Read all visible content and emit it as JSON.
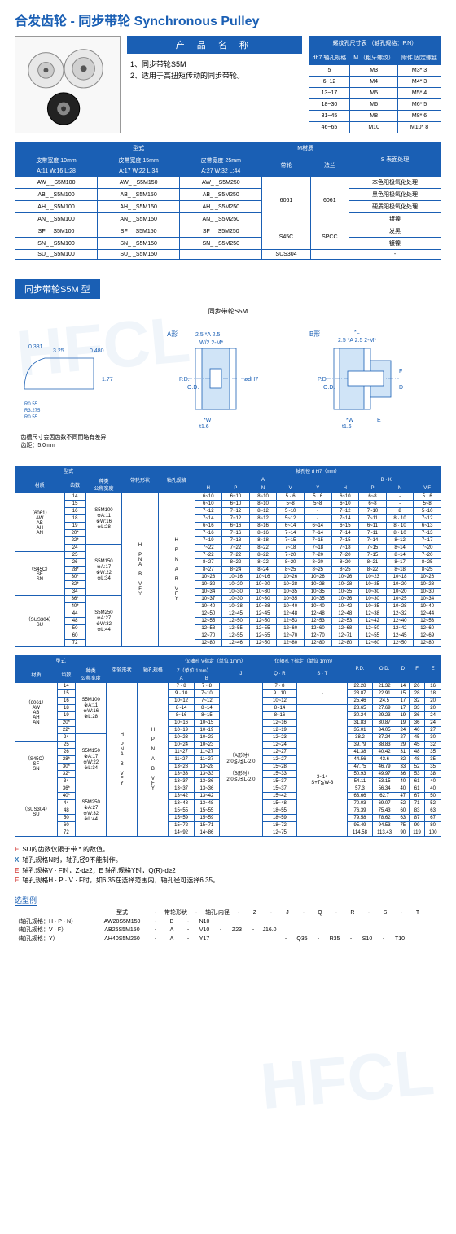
{
  "title": "合发齿轮 - 同步带轮 Synchronous Pulley",
  "product_name_header": "产 品 名 称",
  "description_lines": [
    "1、同步带轮S5M",
    "2、适用于高扭矩传动的同步带轮。"
  ],
  "screw_table": {
    "title": "螺纹孔尺寸表 （轴孔规格：P.N）",
    "headers": [
      "dh7\n轴孔规格",
      "M\n（粗牙螺纹）",
      "附件\n固定螺丝"
    ],
    "rows": [
      [
        "5",
        "M3",
        "M3* 3"
      ],
      [
        "6~12",
        "M4",
        "M4* 3"
      ],
      [
        "13~17",
        "M5",
        "M5* 4"
      ],
      [
        "18~30",
        "M6",
        "M6* 5"
      ],
      [
        "31~45",
        "M8",
        "M8* 6"
      ],
      [
        "46~65",
        "M10",
        "M10* 8"
      ]
    ]
  },
  "type_table": {
    "group_headers": [
      "型式",
      "M材质",
      "S 表面处理"
    ],
    "belt_w": [
      "皮带宽度 10mm",
      "皮带宽度 15mm",
      "皮带宽度 25mm"
    ],
    "awl": [
      "A:11  W:16  L:28",
      "A:17  W:22  L:34",
      "A:27  W:32  L:44"
    ],
    "mat_hdr": [
      "带轮",
      "法兰"
    ],
    "rows": [
      {
        "cells": [
          "AW_ _S5M100",
          "AW_ _S5M150",
          "AW_ _S5M250"
        ],
        "mat": [
          "6061",
          "6061"
        ],
        "surf": "本色阳极氧化处理",
        "rs": 4
      },
      {
        "cells": [
          "AB_ _S5M100",
          "AB_ _S5M150",
          "AB_ _S5M250"
        ],
        "surf": "黑色阳极氧化处理"
      },
      {
        "cells": [
          "AH_ _S5M100",
          "AH_ _S5M150",
          "AH_ _S5M250"
        ],
        "surf": "硬质阳极氧化处理"
      },
      {
        "cells": [
          "AN_ _S5M100",
          "AN_ _S5M150",
          "AN_ _S5M250"
        ],
        "surf": "镀镍"
      },
      {
        "cells": [
          "SF_ _S5M100",
          "SF_ _S5M150",
          "SF_ _S5M250"
        ],
        "mat": [
          "S45C",
          "SPCC"
        ],
        "surf": "发黑",
        "rs": 2
      },
      {
        "cells": [
          "SN_ _S5M100",
          "SN_ _S5M150",
          "SN_ _S5M250"
        ],
        "surf": "镀镍"
      },
      {
        "cells": [
          "SU_ _S5M100",
          "SU_ _S5M150",
          ""
        ],
        "mat": [
          "SUS304",
          ""
        ],
        "surf": "-",
        "rs": 1
      }
    ]
  },
  "section_header": "同步带轮S5M 型",
  "diagram_title": "同步带轮S5M",
  "diagram_labels": {
    "a": "A形",
    "b": "B形",
    "note": "齿槽尺寸会因齿数不同而略有差异\n齿距：5.0mm"
  },
  "bore_table": {
    "title": "型式",
    "hdr1": [
      "材质",
      "齿数",
      "种类\n公称宽度",
      "带轮形状",
      "轴孔规格",
      "轴孔径 d H7（mm）"
    ],
    "hdr2_a": "A",
    "hdr2_bk": "B · K",
    "hdr3": [
      "H",
      "P",
      "N",
      "V",
      "Y",
      "H",
      "P",
      "N",
      "V.F"
    ],
    "materials": [
      {
        "mat": "（6061）\nAW\nAB\nAH\nAN",
        "rs": 8
      },
      {
        "mat": "（S45C）\nSF\nSN",
        "rs": 5
      },
      {
        "mat": "（SUS304）\nSU",
        "rs": 6
      }
    ],
    "type_col": [
      {
        "t": "S5M100\n※A:11\n※W:16\n※L:28",
        "rs": 7
      },
      {
        "t": "S5M150\n※A:17\n※W:22\n※L:34",
        "rs": 6
      },
      {
        "t": "S5M250\n※A:27\n※W:32\n※L:44",
        "rs": 6
      }
    ],
    "shape_col": [
      {
        "t": "H",
        "rs": 6
      },
      {
        "t": "P\nN\nA",
        "rs": 3
      },
      {
        "t": "B",
        "rs": 6
      },
      {
        "t": "V\nF\nY",
        "rs": 4
      }
    ],
    "bore_col": [
      {
        "t": "H",
        "rs": 6
      },
      {
        "t": "P",
        "rs": 3
      },
      {
        "t": "N",
        "rs": 3
      },
      {
        "t": "A",
        "rs": 3
      },
      {
        "t": "B",
        "rs": 2
      },
      {
        "t": "V\nF\nY",
        "rs": 2
      }
    ],
    "rows": [
      [
        "14",
        "6~10",
        "6~10",
        "8~10",
        "5 · 6",
        "5 · 6",
        "6~10",
        "6~8",
        "-",
        "5 · 6"
      ],
      [
        "15",
        "6~10",
        "6~10",
        "8~10",
        "5~8",
        "5~8",
        "6~10",
        "6~8",
        "-",
        "5~8"
      ],
      [
        "16",
        "7~12",
        "7~12",
        "8~12",
        "5~10",
        "-",
        "7~12",
        "7~10",
        "8",
        "5~10"
      ],
      [
        "18",
        "7~14",
        "7~12",
        "8~12",
        "5~12",
        "-",
        "7~14",
        "7~11",
        "8 · 10",
        "7~12"
      ],
      [
        "19",
        "6~16",
        "6~16",
        "8~16",
        "6~14",
        "6~14",
        "6~15",
        "6~11",
        "8 · 10",
        "6~13"
      ],
      [
        "20*",
        "7~16",
        "7~16",
        "8~16",
        "7~14",
        "7~14",
        "7~14",
        "7~11",
        "8 · 10",
        "7~13"
      ],
      [
        "22*",
        "7~19",
        "7~18",
        "8~18",
        "7~15",
        "7~15",
        "7~15",
        "7~14",
        "8~12",
        "7~17"
      ],
      [
        "24",
        "7~22",
        "7~22",
        "8~22",
        "7~18",
        "7~18",
        "7~18",
        "7~15",
        "8~14",
        "7~20"
      ],
      [
        "25",
        "7~22",
        "7~22",
        "8~22",
        "7~20",
        "7~20",
        "7~20",
        "7~15",
        "8~14",
        "7~20"
      ],
      [
        "26",
        "8~27",
        "8~22",
        "8~22",
        "8~20",
        "8~20",
        "8~20",
        "8~21",
        "8~17",
        "8~25"
      ],
      [
        "28*",
        "8~27",
        "8~24",
        "8~24",
        "8~25",
        "8~25",
        "8~25",
        "8~22",
        "8~18",
        "8~25"
      ],
      [
        "30*",
        "10~28",
        "10~16",
        "10~16",
        "10~26",
        "10~26",
        "10~26",
        "10~23",
        "10~18",
        "10~26"
      ],
      [
        "32*",
        "10~32",
        "10~20",
        "10~20",
        "10~28",
        "10~28",
        "10~28",
        "10~25",
        "10~20",
        "10~28"
      ],
      [
        "34",
        "10~34",
        "10~30",
        "10~30",
        "10~35",
        "10~35",
        "10~35",
        "10~30",
        "10~20",
        "10~30"
      ],
      [
        "36*",
        "10~37",
        "10~30",
        "10~30",
        "10~35",
        "10~35",
        "10~36",
        "10~30",
        "10~25",
        "10~34"
      ],
      [
        "40*",
        "10~40",
        "10~38",
        "10~38",
        "10~40",
        "10~40",
        "10~42",
        "10~35",
        "10~28",
        "10~40"
      ],
      [
        "44",
        "12~50",
        "12~45",
        "12~45",
        "12~48",
        "12~48",
        "12~48",
        "12~38",
        "12~32",
        "12~44"
      ],
      [
        "48",
        "12~55",
        "12~50",
        "12~50",
        "12~53",
        "12~53",
        "12~53",
        "12~42",
        "12~40",
        "12~53"
      ],
      [
        "50",
        "12~58",
        "12~55",
        "12~55",
        "12~60",
        "12~60",
        "12~68",
        "12~50",
        "12~42",
        "12~60"
      ],
      [
        "60",
        "12~70",
        "12~55",
        "12~55",
        "12~70",
        "12~70",
        "12~71",
        "12~55",
        "12~45",
        "12~69"
      ],
      [
        "72",
        "12~80",
        "12~46",
        "12~50",
        "12~80",
        "12~80",
        "12~80",
        "12~60",
        "12~50",
        "12~80"
      ]
    ]
  },
  "dim_table": {
    "hdr1": [
      "材质",
      "齿数",
      "种类\n公称宽度",
      "带轮形状",
      "轴孔规格",
      "仅轴孔 V指定（单位 1mm）",
      "仅轴孔 Y指定（单位 1mm）",
      "P.D.",
      "O.D.",
      "D",
      "F",
      "E"
    ],
    "hdr2": [
      "Z（单位 1mm）",
      "J",
      "Q · R",
      "S · T"
    ],
    "hdr3": [
      "A",
      "B",
      "（单位 0.1mm）"
    ],
    "rows": [
      [
        "14",
        "7 · 8",
        "7 · 8",
        "",
        "7 · 8",
        "",
        "22.28",
        "21.32",
        "14",
        "26",
        "16"
      ],
      [
        "15",
        "9 · 10",
        "7~10",
        "",
        "9 · 10",
        "-",
        "23.87",
        "22.91",
        "15",
        "28",
        "18"
      ],
      [
        "16",
        "10~12",
        "7~12",
        "",
        "10~12",
        "",
        "25.46",
        "24.5",
        "17",
        "32",
        "20"
      ],
      [
        "18",
        "8~14",
        "8~14",
        "",
        "8~14",
        "",
        "28.65",
        "27.69",
        "17",
        "33",
        "20"
      ],
      [
        "19",
        "8~16",
        "8~15",
        "",
        "8~16",
        "",
        "30.24",
        "29.23",
        "19",
        "36",
        "24"
      ],
      [
        "20*",
        "10~16",
        "10~15",
        "",
        "12~16",
        "",
        "31.83",
        "30.87",
        "19",
        "36",
        "24"
      ],
      [
        "22*",
        "10~19",
        "10~19",
        "",
        "12~19",
        "",
        "35.01",
        "34.05",
        "24",
        "40",
        "27"
      ],
      [
        "24",
        "10~23",
        "10~23",
        "（A形时）",
        "12~23",
        "",
        "38.2",
        "37.24",
        "27",
        "45",
        "30"
      ],
      [
        "25",
        "10~24",
        "10~23",
        "2.0≦J≦L-2.0",
        "12~24",
        "",
        "39.79",
        "38.83",
        "29",
        "45",
        "32"
      ],
      [
        "26",
        "11~27",
        "11~27",
        "",
        "12~27",
        "3~14",
        "41.38",
        "40.42",
        "31",
        "48",
        "35"
      ],
      [
        "28*",
        "11~27",
        "11~27",
        "（B形时）",
        "12~27",
        "S+T≦W-3",
        "44.56",
        "43.6",
        "32",
        "48",
        "35"
      ],
      [
        "30*",
        "13~28",
        "13~28",
        "2.0≦J≦L-2.0",
        "15~28",
        "",
        "47.75",
        "46.79",
        "33",
        "52",
        "35"
      ],
      [
        "32*",
        "13~33",
        "13~33",
        "",
        "15~33",
        "",
        "50.93",
        "49.97",
        "36",
        "53",
        "38"
      ],
      [
        "34",
        "13~37",
        "13~36",
        "",
        "15~37",
        "",
        "54.11",
        "53.15",
        "40",
        "61",
        "40"
      ],
      [
        "36*",
        "13~37",
        "13~36",
        "",
        "15~37",
        "",
        "57.3",
        "56.34",
        "40",
        "61",
        "40"
      ],
      [
        "40*",
        "13~42",
        "13~42",
        "",
        "15~42",
        "",
        "63.66",
        "62.7",
        "47",
        "67",
        "50"
      ],
      [
        "44",
        "13~48",
        "13~48",
        "",
        "15~48",
        "",
        "70.03",
        "69.07",
        "52",
        "71",
        "52"
      ],
      [
        "48",
        "15~55",
        "15~55",
        "",
        "18~55",
        "",
        "76.39",
        "75.43",
        "60",
        "83",
        "63"
      ],
      [
        "50",
        "15~59",
        "15~59",
        "",
        "18~59",
        "",
        "79.58",
        "78.62",
        "63",
        "87",
        "67"
      ],
      [
        "60",
        "15~72",
        "15~71",
        "",
        "18~72",
        "",
        "95.49",
        "94.53",
        "75",
        "99",
        "80"
      ],
      [
        "72",
        "14~92",
        "14~86",
        "",
        "12~75",
        "",
        "114.58",
        "113.43",
        "90",
        "119",
        "100"
      ]
    ]
  },
  "notes": [
    {
      "tag": "E",
      "text": "SU的齿数仅限于带 * 的数值。"
    },
    {
      "tag": "X",
      "text": "轴孔规格N时，轴孔径9不能制作。"
    },
    {
      "tag": "E",
      "text": "轴孔规格V · F时，Z-d≥2；E 轴孔规格Y时，Q(R)-d≥2"
    },
    {
      "tag": "E",
      "text": "轴孔规格H · P · V · F时，如6.35在选择范围内，轴孔径可选择6.35。"
    }
  ],
  "selection_example": {
    "header": "选型例",
    "cols": [
      "型式",
      "-",
      "带轮形状",
      "-",
      "轴孔.内径",
      "-",
      "Z",
      "-",
      "J",
      "-",
      "Q",
      "-",
      "R",
      "-",
      "S",
      "-",
      "T"
    ],
    "rows": [
      [
        "（轴孔规格：H · P · N）",
        "AW20S5M150",
        "-",
        "B",
        "-",
        "N10",
        "",
        "",
        "",
        "",
        "",
        "",
        "",
        "",
        "",
        "",
        ""
      ],
      [
        "（轴孔规格：V · F）",
        "AB26S5M150",
        "-",
        "A",
        "-",
        "V10",
        "-",
        "Z23",
        "-",
        "J16.0",
        "",
        "",
        "",
        "",
        "",
        "",
        ""
      ],
      [
        "（轴孔规格：Y）",
        "AH40S5M250",
        "-",
        "A",
        "-",
        "Y17",
        "",
        "",
        "",
        "",
        "-",
        "Q35",
        "-",
        "R35",
        "-",
        "S10",
        "-",
        "T10"
      ]
    ]
  },
  "colors": {
    "primary": "#1a5fb4",
    "red": "#d9534f"
  }
}
